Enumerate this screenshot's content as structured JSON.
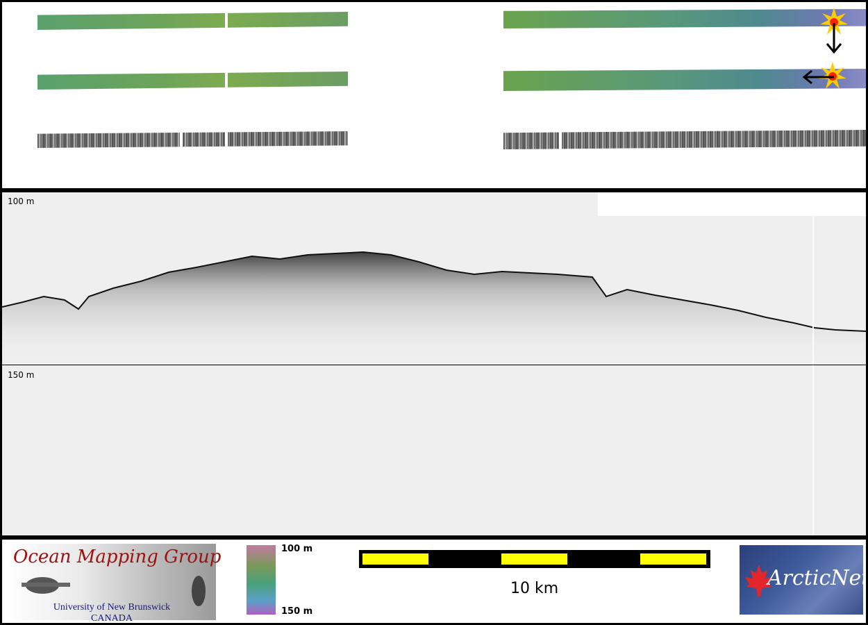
{
  "profile": {
    "depth_top_label": "100 m",
    "depth_bottom_label": "150 m"
  },
  "footer": {
    "logo_omg": {
      "title": "Ocean Mapping Group",
      "line1": "University of New Brunswick",
      "line2": "CANADA"
    },
    "colorbar": {
      "top_label": "100 m",
      "bottom_label": "150 m"
    },
    "scale": {
      "label": "10 km"
    },
    "logo_arctic": {
      "text": "ArcticNet"
    }
  },
  "colors": {
    "frame": "#000000",
    "scale_fill": "#ffff00",
    "scale_bar": "#000000",
    "omg_title": "#a01010",
    "omg_subtitle": "#1a1a7a",
    "arctic_bg": "#2b3f7a",
    "marker_star": "#ffcc00",
    "marker_core": "#ff2200"
  },
  "icons": {
    "position_marker": "starburst-marker-icon",
    "direction_down": "arrow-down-icon",
    "direction_left": "arrow-left-icon"
  }
}
